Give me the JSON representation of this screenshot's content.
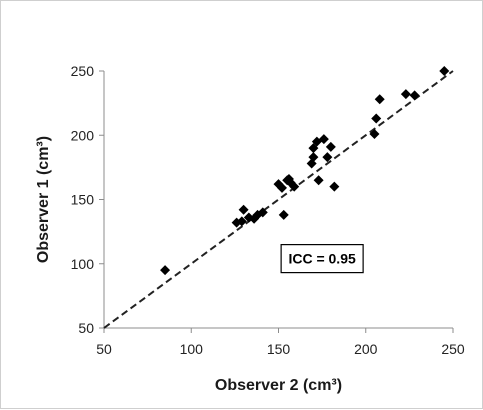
{
  "chart_data": {
    "type": "scatter",
    "title": "",
    "xlabel": "Observer 2 (cm³)",
    "ylabel": "Observer 1 (cm³)",
    "xlim": [
      50,
      250
    ],
    "ylim": [
      50,
      250
    ],
    "xticks": [
      50,
      100,
      150,
      200,
      250
    ],
    "yticks": [
      50,
      100,
      150,
      200,
      250
    ],
    "grid": false,
    "marker": "diamond",
    "marker_color": "#000000",
    "points": [
      {
        "x": 85,
        "y": 95
      },
      {
        "x": 126,
        "y": 132
      },
      {
        "x": 129,
        "y": 133
      },
      {
        "x": 130,
        "y": 142
      },
      {
        "x": 133,
        "y": 136
      },
      {
        "x": 136,
        "y": 135
      },
      {
        "x": 138,
        "y": 138
      },
      {
        "x": 141,
        "y": 140
      },
      {
        "x": 150,
        "y": 162
      },
      {
        "x": 152,
        "y": 159
      },
      {
        "x": 153,
        "y": 138
      },
      {
        "x": 155,
        "y": 165
      },
      {
        "x": 156,
        "y": 166
      },
      {
        "x": 157,
        "y": 163
      },
      {
        "x": 159,
        "y": 160
      },
      {
        "x": 169,
        "y": 178
      },
      {
        "x": 170,
        "y": 183
      },
      {
        "x": 170,
        "y": 190
      },
      {
        "x": 172,
        "y": 195
      },
      {
        "x": 173,
        "y": 165
      },
      {
        "x": 176,
        "y": 197
      },
      {
        "x": 178,
        "y": 183
      },
      {
        "x": 180,
        "y": 191
      },
      {
        "x": 182,
        "y": 160
      },
      {
        "x": 205,
        "y": 201
      },
      {
        "x": 206,
        "y": 213
      },
      {
        "x": 208,
        "y": 228
      },
      {
        "x": 223,
        "y": 232
      },
      {
        "x": 228,
        "y": 231
      },
      {
        "x": 245,
        "y": 250
      }
    ],
    "reference_line": {
      "style": "dashed",
      "color": "#222222",
      "from": {
        "x": 50,
        "y": 50
      },
      "to": {
        "x": 250,
        "y": 250
      }
    },
    "annotations": [
      {
        "text": "ICC = 0.95",
        "x": 175,
        "y": 104,
        "boxed": true
      }
    ]
  }
}
